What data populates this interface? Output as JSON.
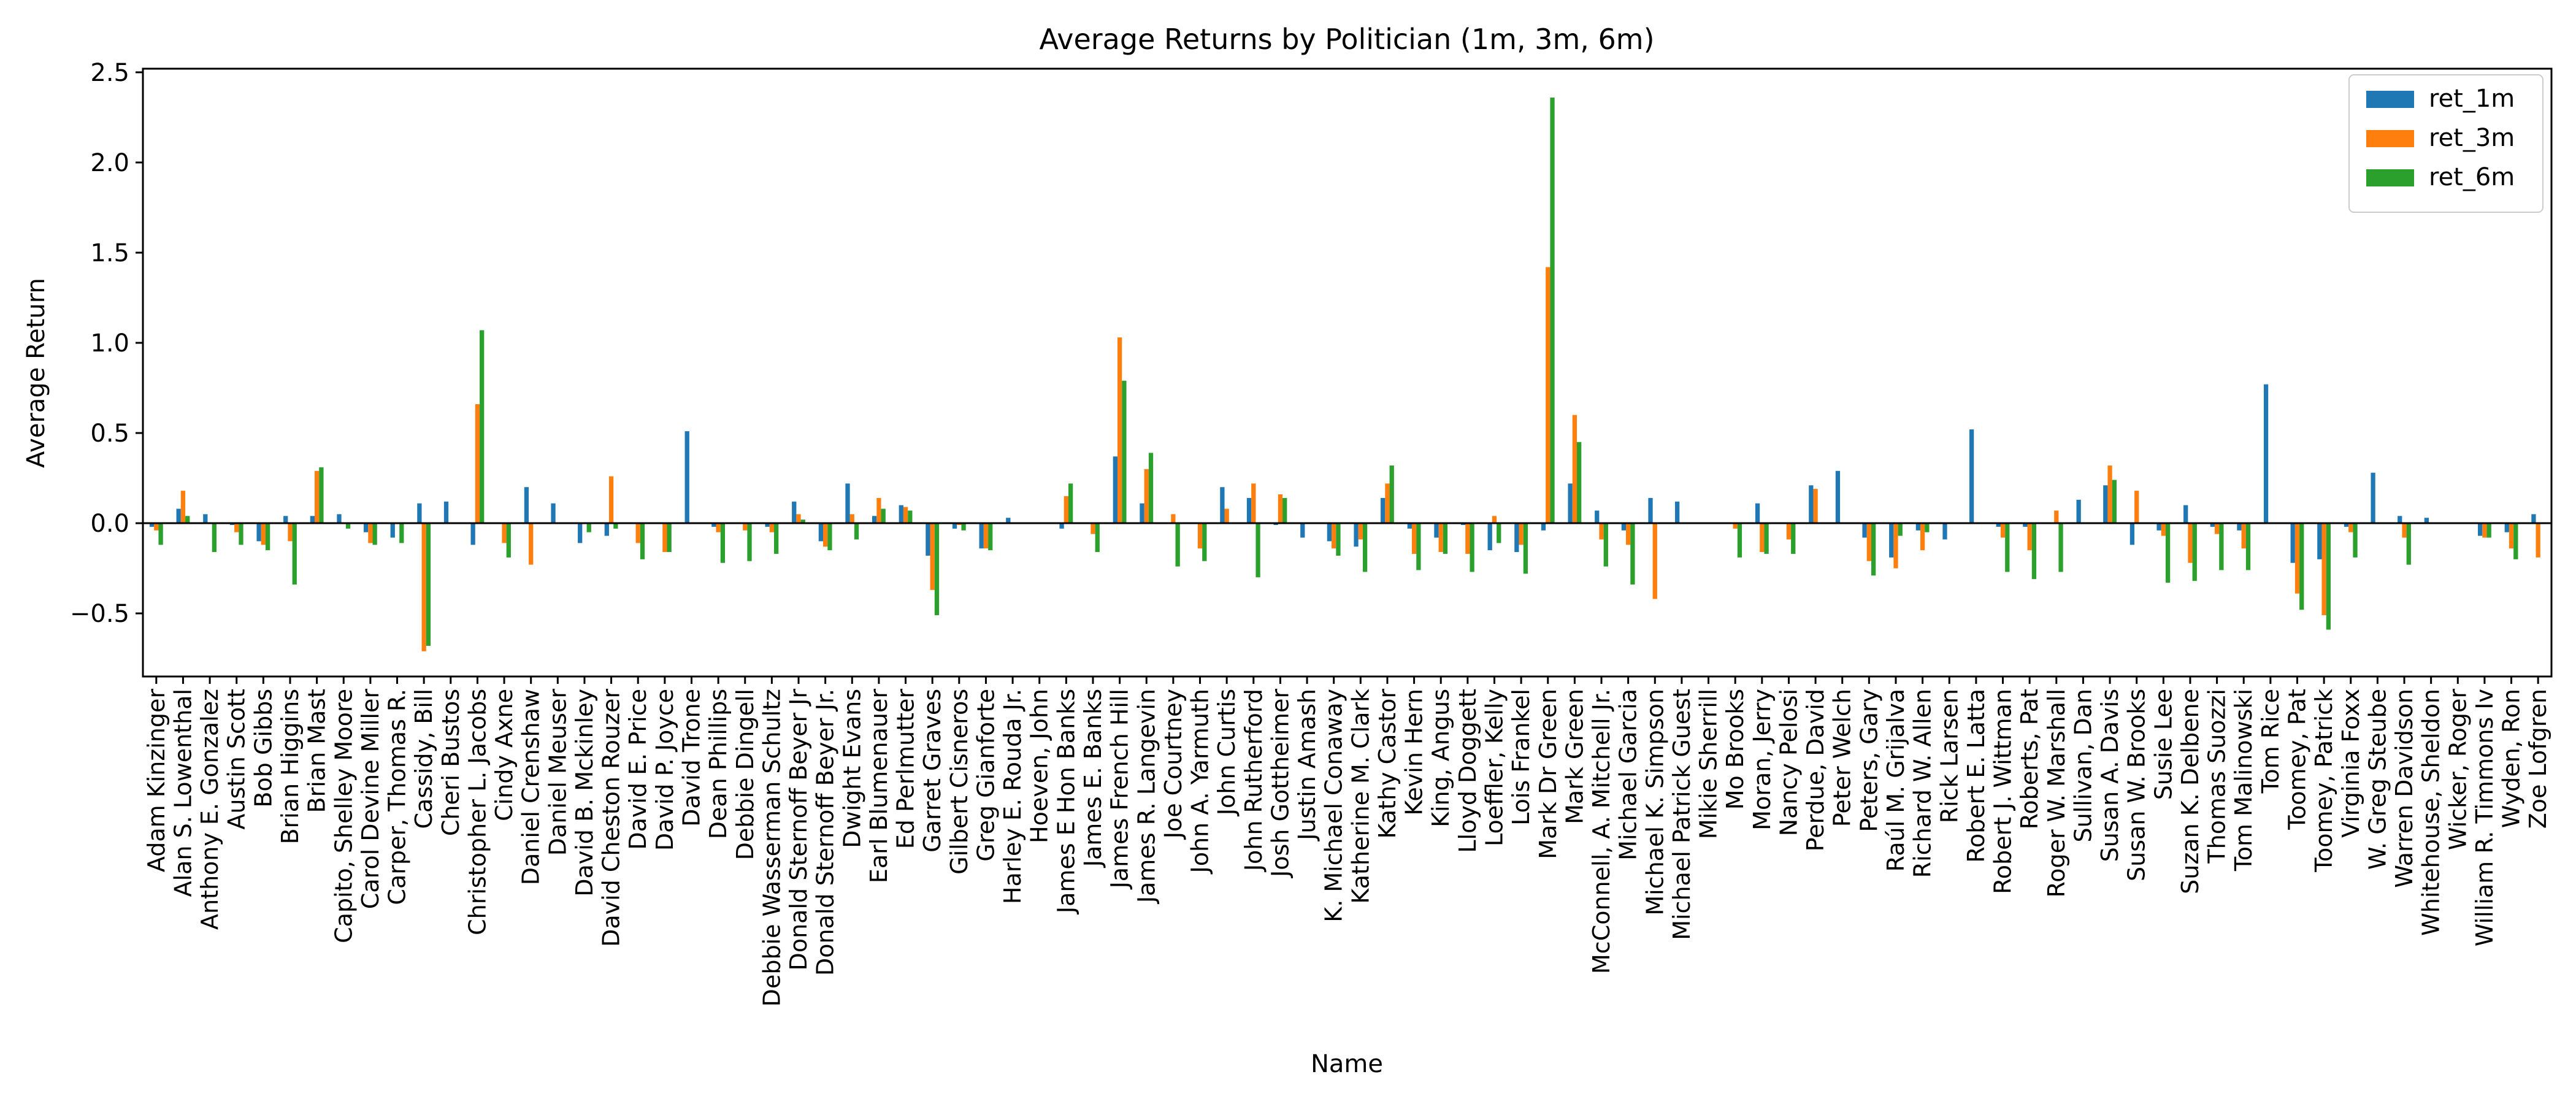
{
  "chart_data": {
    "type": "bar",
    "title": "Average Returns by Politician (1m, 3m, 6m)",
    "xlabel": "Name",
    "ylabel": "Average Return",
    "ylim": [
      -0.85,
      2.52
    ],
    "yticks": [
      "2.5",
      "2.0",
      "1.5",
      "1.0",
      "0.5",
      "0.0",
      "−0.5"
    ],
    "ytick_values": [
      2.5,
      2.0,
      1.5,
      1.0,
      0.5,
      0.0,
      -0.5
    ],
    "grid": false,
    "legend_position": "top-right",
    "categories": [
      "Adam Kinzinger",
      "Alan S. Lowenthal",
      "Anthony E. Gonzalez",
      "Austin Scott",
      "Bob Gibbs",
      "Brian Higgins",
      "Brian Mast",
      "Capito, Shelley Moore",
      "Carol Devine Miller",
      "Carper, Thomas R.",
      "Cassidy, Bill",
      "Cheri Bustos",
      "Christopher L. Jacobs",
      "Cindy Axne",
      "Daniel Crenshaw",
      "Daniel Meuser",
      "David B. Mckinley",
      "David Cheston Rouzer",
      "David E. Price",
      "David P. Joyce",
      "David Trone",
      "Dean Phillips",
      "Debbie Dingell",
      "Debbie Wasserman Schultz",
      "Donald Sternoff Beyer Jr",
      "Donald Sternoff Beyer Jr.",
      "Dwight Evans",
      "Earl Blumenauer",
      "Ed Perlmutter",
      "Garret Graves",
      "Gilbert Cisneros",
      "Greg Gianforte",
      "Harley E. Rouda Jr.",
      "Hoeven, John",
      "James E Hon Banks",
      "James E. Banks",
      "James French Hill",
      "James R. Langevin",
      "Joe Courtney",
      "John A. Yarmuth",
      "John Curtis",
      "John Rutherford",
      "Josh Gottheimer",
      "Justin Amash",
      "K. Michael Conaway",
      "Katherine M. Clark",
      "Kathy Castor",
      "Kevin Hern",
      "King, Angus",
      "Lloyd Doggett",
      "Loeffler, Kelly",
      "Lois Frankel",
      "Mark Dr Green",
      "Mark Green",
      "McConnell, A. Mitchell Jr.",
      "Michael Garcia",
      "Michael K. Simpson",
      "Michael Patrick Guest",
      "Mikie Sherrill",
      "Mo Brooks",
      "Moran, Jerry",
      "Nancy Pelosi",
      "Perdue, David",
      "Peter Welch",
      "Peters, Gary",
      "Raúl M. Grijalva",
      "Richard W. Allen",
      "Rick Larsen",
      "Robert E. Latta",
      "Robert J. Wittman",
      "Roberts, Pat",
      "Roger W. Marshall",
      "Sullivan, Dan",
      "Susan A. Davis",
      "Susan W. Brooks",
      "Susie Lee",
      "Suzan K. Delbene",
      "Thomas Suozzi",
      "Tom Malinowski",
      "Tom Rice",
      "Toomey, Pat",
      "Toomey, Patrick",
      "Virginia Foxx",
      "W. Greg Steube",
      "Warren Davidson",
      "Whitehouse, Sheldon",
      "Wicker, Roger",
      "William R. Timmons Iv",
      "Wyden, Ron",
      "Zoe Lofgren"
    ],
    "series": [
      {
        "name": "ret_1m",
        "color": "#1f77b4",
        "values": [
          -0.02,
          0.08,
          0.05,
          -0.01,
          -0.1,
          0.04,
          0.04,
          0.05,
          -0.05,
          -0.08,
          0.11,
          0.12,
          -0.12,
          0.0,
          0.2,
          0.11,
          -0.11,
          -0.07,
          0.0,
          0.0,
          0.51,
          -0.02,
          0.0,
          -0.02,
          0.12,
          -0.1,
          0.22,
          0.04,
          0.1,
          -0.18,
          -0.03,
          -0.14,
          0.03,
          0.0,
          -0.03,
          0.0,
          0.37,
          0.11,
          0.0,
          0.0,
          0.2,
          0.14,
          -0.01,
          -0.08,
          -0.1,
          -0.13,
          0.14,
          -0.03,
          -0.08,
          -0.01,
          -0.15,
          -0.16,
          -0.04,
          0.22,
          0.07,
          -0.04,
          0.14,
          0.12,
          0.0,
          0.0,
          0.11,
          0.0,
          0.21,
          0.29,
          -0.08,
          -0.19,
          -0.04,
          -0.09,
          0.52,
          -0.02,
          -0.02,
          0.0,
          0.13,
          0.21,
          -0.12,
          -0.04,
          0.1,
          -0.02,
          -0.04,
          0.77,
          -0.22,
          -0.2,
          -0.02,
          0.28,
          0.04,
          0.03,
          0.0,
          -0.07,
          -0.05,
          0.05
        ]
      },
      {
        "name": "ret_3m",
        "color": "#ff7f0e",
        "values": [
          -0.04,
          0.18,
          0.0,
          -0.05,
          -0.12,
          -0.1,
          0.29,
          0.0,
          -0.11,
          0.0,
          -0.71,
          0.0,
          0.66,
          -0.11,
          -0.23,
          0.0,
          0.0,
          0.26,
          -0.11,
          -0.16,
          0.0,
          -0.05,
          -0.04,
          -0.05,
          0.05,
          -0.13,
          0.05,
          0.14,
          0.09,
          -0.37,
          -0.01,
          -0.14,
          0.0,
          0.0,
          0.15,
          -0.06,
          1.03,
          0.3,
          0.05,
          -0.14,
          0.08,
          0.22,
          0.16,
          0.0,
          -0.14,
          -0.09,
          0.22,
          -0.17,
          -0.16,
          -0.17,
          0.04,
          -0.12,
          1.42,
          0.6,
          -0.09,
          -0.12,
          -0.42,
          0.0,
          0.0,
          -0.03,
          -0.16,
          -0.09,
          0.19,
          0.0,
          -0.21,
          -0.25,
          -0.15,
          0.0,
          0.0,
          -0.08,
          -0.15,
          0.07,
          0.0,
          0.32,
          0.18,
          -0.07,
          -0.22,
          -0.06,
          -0.14,
          0.0,
          -0.39,
          -0.51,
          -0.05,
          0.0,
          -0.08,
          0.0,
          0.0,
          -0.08,
          -0.14,
          -0.19
        ]
      },
      {
        "name": "ret_6m",
        "color": "#2ca02c",
        "values": [
          -0.12,
          0.04,
          -0.16,
          -0.12,
          -0.15,
          -0.34,
          0.31,
          -0.03,
          -0.12,
          -0.11,
          -0.68,
          0.0,
          1.07,
          -0.19,
          0.0,
          0.0,
          -0.05,
          -0.03,
          -0.2,
          -0.16,
          0.0,
          -0.22,
          -0.21,
          -0.17,
          0.02,
          -0.15,
          -0.09,
          0.08,
          0.07,
          -0.51,
          -0.04,
          -0.15,
          0.0,
          0.0,
          0.22,
          -0.16,
          0.79,
          0.39,
          -0.24,
          -0.21,
          0.0,
          -0.3,
          0.14,
          0.0,
          -0.18,
          -0.27,
          0.32,
          -0.26,
          -0.17,
          -0.27,
          -0.11,
          -0.28,
          2.36,
          0.45,
          -0.24,
          -0.34,
          0.0,
          0.0,
          0.0,
          -0.19,
          -0.17,
          -0.17,
          0.0,
          0.0,
          -0.29,
          -0.07,
          -0.05,
          0.0,
          0.0,
          -0.27,
          -0.31,
          -0.27,
          0.0,
          0.24,
          0.0,
          -0.33,
          -0.32,
          -0.26,
          -0.26,
          0.0,
          -0.48,
          -0.59,
          -0.19,
          0.0,
          -0.23,
          0.0,
          0.0,
          -0.08,
          -0.2,
          0.0
        ]
      }
    ]
  }
}
